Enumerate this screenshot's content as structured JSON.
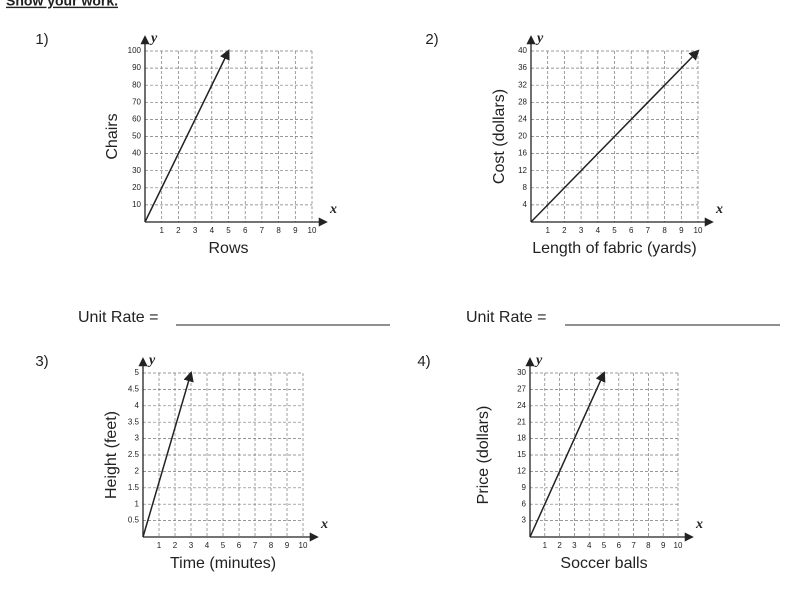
{
  "instruction": "Show your work.",
  "unit_rate_label": "Unit Rate =",
  "chart_data": [
    {
      "type": "line",
      "number": "1)",
      "x_letter": "x",
      "y_letter": "y",
      "xlabel": "Rows",
      "ylabel": "Chairs",
      "x": [
        0,
        5
      ],
      "values": [
        0,
        100
      ],
      "color": "#222222",
      "grid": true,
      "xlim": [
        0,
        10
      ],
      "xticks": [
        1,
        2,
        3,
        4,
        5,
        6,
        7,
        8,
        9,
        10
      ],
      "ylim": [
        0,
        100
      ],
      "yticks": [
        10,
        20,
        30,
        40,
        50,
        60,
        70,
        80,
        90,
        100
      ]
    },
    {
      "type": "line",
      "number": "2)",
      "x_letter": "x",
      "y_letter": "y",
      "xlabel": "Length of fabric (yards)",
      "ylabel": "Cost (dollars)",
      "x": [
        0,
        10
      ],
      "values": [
        0,
        40
      ],
      "color": "#222222",
      "grid": true,
      "xlim": [
        0,
        10
      ],
      "xticks": [
        1,
        2,
        3,
        4,
        5,
        6,
        7,
        8,
        9,
        10
      ],
      "ylim": [
        0,
        40
      ],
      "yticks": [
        4,
        8,
        12,
        16,
        20,
        24,
        28,
        32,
        36,
        40
      ]
    },
    {
      "type": "line",
      "number": "3)",
      "x_letter": "x",
      "y_letter": "y",
      "xlabel": "Time (minutes)",
      "ylabel": "Height (feet)",
      "x": [
        0,
        3
      ],
      "values": [
        0,
        5
      ],
      "color": "#222222",
      "grid": true,
      "xlim": [
        0,
        10
      ],
      "xticks": [
        1,
        2,
        3,
        4,
        5,
        6,
        7,
        8,
        9,
        10
      ],
      "ylim": [
        0,
        5
      ],
      "yticks": [
        0.5,
        1,
        1.5,
        2,
        2.5,
        3,
        3.5,
        4,
        4.5,
        5
      ]
    },
    {
      "type": "line",
      "number": "4)",
      "x_letter": "x",
      "y_letter": "y",
      "xlabel": "Soccer balls",
      "ylabel": "Price (dollars)",
      "x": [
        0,
        5
      ],
      "values": [
        0,
        30
      ],
      "color": "#222222",
      "grid": true,
      "xlim": [
        0,
        10
      ],
      "xticks": [
        1,
        2,
        3,
        4,
        5,
        6,
        7,
        8,
        9,
        10
      ],
      "ylim": [
        0,
        30
      ],
      "yticks": [
        3,
        6,
        9,
        12,
        15,
        18,
        21,
        24,
        27,
        30
      ]
    }
  ]
}
